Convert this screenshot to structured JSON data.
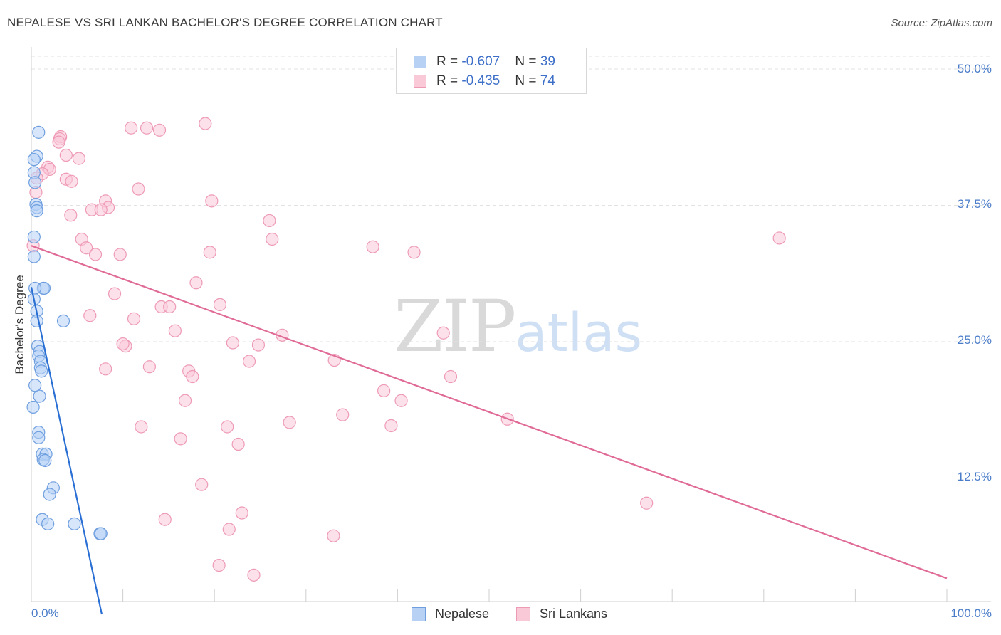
{
  "title": "NEPALESE VS SRI LANKAN BACHELOR'S DEGREE CORRELATION CHART",
  "source": "Source: ZipAtlas.com",
  "watermark": {
    "zip": "ZIP",
    "atlas": "atlas"
  },
  "colors": {
    "nepalese_fill": "#b7d1f5",
    "nepalese_stroke": "#6f9fdf",
    "nepalese_line": "#2a6fd4",
    "srilankan_fill": "#f9c9d8",
    "srilankan_stroke": "#ee9ab5",
    "srilankan_line": "#e06b96",
    "tick_text": "#4a7cc9",
    "grid": "#e2e2e2"
  },
  "legend": {
    "nepalese": {
      "r_label": "R = ",
      "r_value": "-0.607",
      "n_label": "N = ",
      "n_value": "39",
      "name": "Nepalese"
    },
    "srilankan": {
      "r_label": "R = ",
      "r_value": "-0.435",
      "n_label": "N = ",
      "n_value": "74",
      "name": "Sri Lankans"
    }
  },
  "chart_data": {
    "type": "scatter",
    "title": "NEPALESE VS SRI LANKAN BACHELOR'S DEGREE CORRELATION CHART",
    "xlabel": "",
    "ylabel": "Bachelor's Degree",
    "xlim": [
      0,
      100
    ],
    "ylim": [
      0,
      50
    ],
    "x_tick_labels": [
      {
        "value": 0,
        "label": "0.0%"
      },
      {
        "value": 100,
        "label": "100.0%"
      }
    ],
    "y_tick_labels": [
      {
        "value": 12.5,
        "label": "12.5%"
      },
      {
        "value": 25,
        "label": "25.0%"
      },
      {
        "value": 37.5,
        "label": "37.5%"
      },
      {
        "value": 50,
        "label": "50.0%"
      }
    ],
    "legend_position": "top-center",
    "series": [
      {
        "name": "Nepalese",
        "r": -0.607,
        "n": 39,
        "trend": {
          "x0": 0.0,
          "y0": 30.0,
          "x1": 7.7,
          "y1": 0.0
        },
        "points": [
          [
            0.8,
            44.2
          ],
          [
            0.6,
            42.0
          ],
          [
            0.3,
            41.7
          ],
          [
            0.3,
            40.5
          ],
          [
            0.4,
            39.6
          ],
          [
            0.5,
            37.6
          ],
          [
            0.6,
            37.3
          ],
          [
            0.6,
            37.0
          ],
          [
            0.3,
            34.6
          ],
          [
            0.3,
            32.8
          ],
          [
            1.3,
            29.9
          ],
          [
            1.4,
            29.9
          ],
          [
            0.4,
            29.9
          ],
          [
            0.3,
            28.9
          ],
          [
            0.6,
            27.8
          ],
          [
            0.6,
            26.9
          ],
          [
            3.5,
            26.9
          ],
          [
            0.7,
            24.6
          ],
          [
            0.9,
            24.1
          ],
          [
            0.8,
            23.7
          ],
          [
            1.0,
            23.2
          ],
          [
            1.0,
            22.6
          ],
          [
            1.1,
            22.3
          ],
          [
            0.9,
            20.0
          ],
          [
            0.8,
            16.7
          ],
          [
            0.8,
            16.2
          ],
          [
            1.2,
            14.7
          ],
          [
            1.6,
            14.7
          ],
          [
            1.3,
            14.2
          ],
          [
            1.5,
            14.1
          ],
          [
            2.4,
            11.6
          ],
          [
            2.0,
            11.0
          ],
          [
            1.2,
            8.7
          ],
          [
            1.8,
            8.3
          ],
          [
            4.7,
            8.3
          ],
          [
            7.5,
            7.4
          ],
          [
            7.6,
            7.4
          ],
          [
            0.2,
            19.0
          ],
          [
            0.4,
            21.0
          ]
        ]
      },
      {
        "name": "Sri Lankans",
        "r": -0.435,
        "n": 74,
        "trend": {
          "x0": 0.0,
          "y0": 33.8,
          "x1": 100.0,
          "y1": 3.3
        },
        "points": [
          [
            10.9,
            44.6
          ],
          [
            12.6,
            44.6
          ],
          [
            14.0,
            44.4
          ],
          [
            19.0,
            45.0
          ],
          [
            3.2,
            43.8
          ],
          [
            3.1,
            43.6
          ],
          [
            3.0,
            43.3
          ],
          [
            3.8,
            42.1
          ],
          [
            5.2,
            41.8
          ],
          [
            1.8,
            41.0
          ],
          [
            2.0,
            40.8
          ],
          [
            1.2,
            40.4
          ],
          [
            3.8,
            39.9
          ],
          [
            4.4,
            39.7
          ],
          [
            11.7,
            39.0
          ],
          [
            0.5,
            38.7
          ],
          [
            19.7,
            37.9
          ],
          [
            8.1,
            37.9
          ],
          [
            8.4,
            37.3
          ],
          [
            6.6,
            37.1
          ],
          [
            7.6,
            37.1
          ],
          [
            4.3,
            36.6
          ],
          [
            26.0,
            36.1
          ],
          [
            5.5,
            34.4
          ],
          [
            26.3,
            34.4
          ],
          [
            6.0,
            33.6
          ],
          [
            0.2,
            33.8
          ],
          [
            7.0,
            33.0
          ],
          [
            9.7,
            33.0
          ],
          [
            19.5,
            33.2
          ],
          [
            37.3,
            33.7
          ],
          [
            41.8,
            33.2
          ],
          [
            81.7,
            34.5
          ],
          [
            18.0,
            30.4
          ],
          [
            9.1,
            29.4
          ],
          [
            20.6,
            28.4
          ],
          [
            14.2,
            28.2
          ],
          [
            15.1,
            28.2
          ],
          [
            6.4,
            27.4
          ],
          [
            11.2,
            27.1
          ],
          [
            15.7,
            26.0
          ],
          [
            27.4,
            25.6
          ],
          [
            45.0,
            25.8
          ],
          [
            10.3,
            24.6
          ],
          [
            10.0,
            24.8
          ],
          [
            22.0,
            24.9
          ],
          [
            24.8,
            24.7
          ],
          [
            23.8,
            23.2
          ],
          [
            33.1,
            23.3
          ],
          [
            12.9,
            22.7
          ],
          [
            8.1,
            22.5
          ],
          [
            17.2,
            22.3
          ],
          [
            17.6,
            21.8
          ],
          [
            45.8,
            21.8
          ],
          [
            38.5,
            20.5
          ],
          [
            16.8,
            19.6
          ],
          [
            40.4,
            19.6
          ],
          [
            34.0,
            18.3
          ],
          [
            52.0,
            17.9
          ],
          [
            28.2,
            17.6
          ],
          [
            12.0,
            17.2
          ],
          [
            21.4,
            17.2
          ],
          [
            39.3,
            17.3
          ],
          [
            16.3,
            16.1
          ],
          [
            22.6,
            15.6
          ],
          [
            18.6,
            11.9
          ],
          [
            67.2,
            10.2
          ],
          [
            23.0,
            9.3
          ],
          [
            14.6,
            8.7
          ],
          [
            21.6,
            7.8
          ],
          [
            33.0,
            7.2
          ],
          [
            20.5,
            4.5
          ],
          [
            24.3,
            3.6
          ],
          [
            0.6,
            40.0
          ]
        ]
      }
    ]
  }
}
